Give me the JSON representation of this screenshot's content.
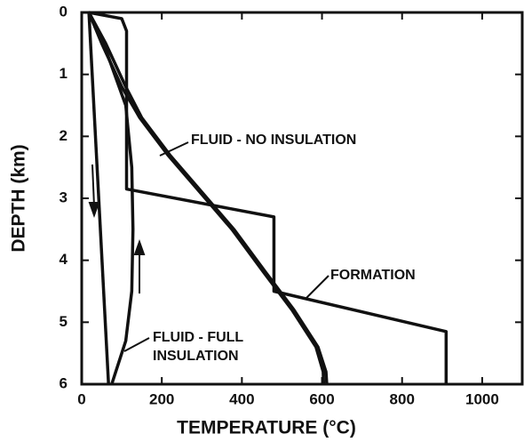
{
  "chart_data": {
    "type": "line",
    "x_label": "TEMPERATURE (°C)",
    "y_label": "DEPTH (km)",
    "xlim": [
      0,
      1100
    ],
    "ylim": [
      6,
      0
    ],
    "xticks": [
      0,
      200,
      400,
      600,
      800,
      1000
    ],
    "yticks": [
      0,
      1,
      2,
      3,
      4,
      5,
      6
    ],
    "annotations": [
      "FLUID - NO INSULATION",
      "FORMATION",
      "FLUID - FULL",
      "INSULATION"
    ],
    "series": [
      {
        "color": "#111111",
        "x": [
          18,
          100,
          112,
          112,
          480,
          480,
          910,
          910
        ],
        "values": [
          0,
          0.1,
          0.3,
          2.85,
          3.3,
          4.5,
          5.15,
          6
        ]
      },
      {
        "color": "#111111",
        "x": [
          18,
          60,
          110,
          150,
          220,
          300,
          380,
          460,
          530,
          590,
          610,
          612
        ],
        "values": [
          0,
          0.5,
          1.2,
          1.7,
          2.3,
          2.9,
          3.5,
          4.2,
          4.8,
          5.4,
          5.8,
          6
        ]
      },
      {
        "color": "#111111",
        "x": [
          18,
          50,
          100,
          145,
          215,
          295,
          375,
          455,
          525,
          585,
          603,
          604
        ],
        "values": [
          0,
          0.5,
          1.2,
          1.7,
          2.3,
          2.9,
          3.5,
          4.2,
          4.8,
          5.4,
          5.8,
          6
        ]
      },
      {
        "color": "#111111",
        "x": [
          18,
          67
        ],
        "values": [
          0,
          6
        ]
      },
      {
        "color": "#111111",
        "x": [
          75,
          110,
          125,
          128,
          125,
          110,
          60,
          18
        ],
        "values": [
          6,
          5.3,
          4.5,
          3.5,
          2.5,
          1.5,
          0.6,
          0
        ]
      }
    ]
  }
}
